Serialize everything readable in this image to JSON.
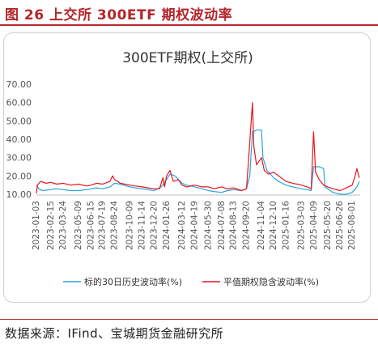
{
  "figure": {
    "label": "图 26 上交所 300ETF 期权波动率",
    "source": "数据来源：IFind、宝城期货金融研究所"
  },
  "colors": {
    "accent": "#b3262a",
    "series_hv": "#27a4de",
    "series_iv": "#e8131c",
    "axis_text": "#555555"
  },
  "chart_data": {
    "type": "line",
    "title": "300ETF期权(上交所)",
    "xlabel": "",
    "ylabel": "",
    "ylim": [
      10,
      70
    ],
    "y_ticks": [
      "70.00",
      "60.00",
      "50.00",
      "40.00",
      "30.00",
      "20.00",
      "10.00"
    ],
    "x_ticks": [
      "2023-01-03",
      "2023-02-15",
      "2023-03-24",
      "2023-05-09",
      "2023-06-15",
      "2023-07-19",
      "2023-08-24",
      "2023-10-09",
      "2023-11-14",
      "2023-12-20",
      "2024-01-26",
      "2024-03-12",
      "2024-04-19",
      "2024-05-30",
      "2024-07-08",
      "2024-08-13",
      "2024-09-20",
      "2024-11-04",
      "2024-12-10",
      "2025-01-16",
      "2025-03-03",
      "2025-04-09",
      "2025-05-20",
      "2025-06-26",
      "2025-08-01"
    ],
    "legend_position": "bottom",
    "series": [
      {
        "name": "标的30日历史波动率(%)",
        "color": "#27a4de",
        "points": [
          [
            "2023-01-03",
            15
          ],
          [
            "2023-01-10",
            13
          ],
          [
            "2023-01-20",
            12
          ],
          [
            "2023-02-15",
            12.5
          ],
          [
            "2023-03-01",
            13
          ],
          [
            "2023-03-24",
            12.5
          ],
          [
            "2023-04-15",
            12
          ],
          [
            "2023-05-09",
            12
          ],
          [
            "2023-06-01",
            12.5
          ],
          [
            "2023-06-15",
            13
          ],
          [
            "2023-07-01",
            13.5
          ],
          [
            "2023-07-19",
            13
          ],
          [
            "2023-08-10",
            14
          ],
          [
            "2023-08-24",
            16
          ],
          [
            "2023-09-10",
            15.5
          ],
          [
            "2023-10-09",
            14
          ],
          [
            "2023-10-25",
            13.5
          ],
          [
            "2023-11-14",
            13
          ],
          [
            "2023-12-01",
            12.5
          ],
          [
            "2023-12-20",
            12
          ],
          [
            "2024-01-10",
            14
          ],
          [
            "2024-01-26",
            18
          ],
          [
            "2024-02-05",
            21
          ],
          [
            "2024-02-20",
            20
          ],
          [
            "2024-03-12",
            16
          ],
          [
            "2024-03-25",
            15
          ],
          [
            "2024-04-19",
            14
          ],
          [
            "2024-05-10",
            13
          ],
          [
            "2024-05-30",
            12
          ],
          [
            "2024-06-15",
            11.5
          ],
          [
            "2024-07-08",
            11
          ],
          [
            "2024-07-25",
            12
          ],
          [
            "2024-08-13",
            12.5
          ],
          [
            "2024-09-05",
            12
          ],
          [
            "2024-09-20",
            13
          ],
          [
            "2024-09-30",
            20
          ],
          [
            "2024-10-08",
            44
          ],
          [
            "2024-10-20",
            45
          ],
          [
            "2024-11-04",
            45
          ],
          [
            "2024-11-08",
            30
          ],
          [
            "2024-11-20",
            23
          ],
          [
            "2024-12-10",
            19
          ],
          [
            "2024-12-25",
            17
          ],
          [
            "2025-01-16",
            15
          ],
          [
            "2025-02-05",
            14
          ],
          [
            "2025-03-03",
            13
          ],
          [
            "2025-03-20",
            12.5
          ],
          [
            "2025-04-01",
            12
          ],
          [
            "2025-04-08",
            25
          ],
          [
            "2025-04-25",
            25
          ],
          [
            "2025-05-08",
            24
          ],
          [
            "2025-05-12",
            14
          ],
          [
            "2025-05-20",
            13
          ],
          [
            "2025-06-05",
            11
          ],
          [
            "2025-06-26",
            10
          ],
          [
            "2025-07-15",
            10
          ],
          [
            "2025-08-01",
            11
          ],
          [
            "2025-08-15",
            14
          ],
          [
            "2025-08-22",
            17
          ]
        ]
      },
      {
        "name": "平值期权隐含波动率(%)",
        "color": "#e8131c",
        "points": [
          [
            "2023-01-03",
            10.5
          ],
          [
            "2023-01-06",
            15
          ],
          [
            "2023-01-15",
            17
          ],
          [
            "2023-02-01",
            16
          ],
          [
            "2023-02-15",
            16.5
          ],
          [
            "2023-03-05",
            15.5
          ],
          [
            "2023-03-24",
            16
          ],
          [
            "2023-04-15",
            15
          ],
          [
            "2023-05-09",
            15.5
          ],
          [
            "2023-06-01",
            14.5
          ],
          [
            "2023-06-15",
            15
          ],
          [
            "2023-07-01",
            16
          ],
          [
            "2023-07-19",
            15.5
          ],
          [
            "2023-08-10",
            17
          ],
          [
            "2023-08-18",
            20
          ],
          [
            "2023-08-24",
            18
          ],
          [
            "2023-09-10",
            16
          ],
          [
            "2023-10-09",
            15
          ],
          [
            "2023-10-25",
            14.5
          ],
          [
            "2023-11-14",
            14
          ],
          [
            "2023-12-01",
            13.5
          ],
          [
            "2023-12-20",
            13
          ],
          [
            "2024-01-05",
            13
          ],
          [
            "2024-01-15",
            19
          ],
          [
            "2024-01-20",
            14
          ],
          [
            "2024-01-26",
            20
          ],
          [
            "2024-02-05",
            23
          ],
          [
            "2024-02-15",
            17
          ],
          [
            "2024-03-01",
            18
          ],
          [
            "2024-03-12",
            15
          ],
          [
            "2024-03-25",
            14
          ],
          [
            "2024-04-19",
            15
          ],
          [
            "2024-05-10",
            14
          ],
          [
            "2024-05-30",
            14
          ],
          [
            "2024-06-15",
            13
          ],
          [
            "2024-07-08",
            14
          ],
          [
            "2024-07-25",
            13
          ],
          [
            "2024-08-13",
            13.5
          ],
          [
            "2024-09-05",
            12
          ],
          [
            "2024-09-20",
            13
          ],
          [
            "2024-09-26",
            28
          ],
          [
            "2024-10-08",
            60
          ],
          [
            "2024-10-12",
            36
          ],
          [
            "2024-10-20",
            26
          ],
          [
            "2024-11-04",
            30
          ],
          [
            "2024-11-12",
            23
          ],
          [
            "2024-11-25",
            21
          ],
          [
            "2024-12-10",
            22
          ],
          [
            "2024-12-25",
            20
          ],
          [
            "2025-01-16",
            17
          ],
          [
            "2025-02-05",
            16
          ],
          [
            "2025-03-03",
            15
          ],
          [
            "2025-03-20",
            14
          ],
          [
            "2025-04-01",
            13
          ],
          [
            "2025-04-08",
            44
          ],
          [
            "2025-04-14",
            22
          ],
          [
            "2025-04-25",
            18
          ],
          [
            "2025-05-08",
            15
          ],
          [
            "2025-05-20",
            14
          ],
          [
            "2025-06-05",
            13
          ],
          [
            "2025-06-26",
            12
          ],
          [
            "2025-07-15",
            13.5
          ],
          [
            "2025-08-01",
            15
          ],
          [
            "2025-08-10",
            20
          ],
          [
            "2025-08-15",
            24
          ],
          [
            "2025-08-22",
            19
          ]
        ]
      }
    ]
  }
}
